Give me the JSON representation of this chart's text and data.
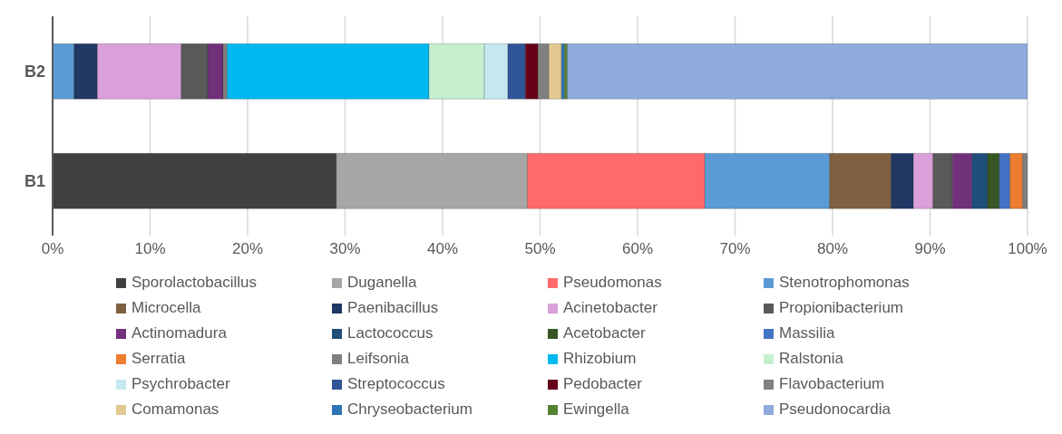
{
  "chart_data": {
    "type": "bar",
    "orientation": "horizontal",
    "stacked": true,
    "categories": [
      "B2",
      "B1"
    ],
    "xlim": [
      0,
      100
    ],
    "xticks": [
      {
        "value": 0,
        "label": "0%"
      },
      {
        "value": 10,
        "label": "10%"
      },
      {
        "value": 20,
        "label": "20%"
      },
      {
        "value": 30,
        "label": "30%"
      },
      {
        "value": 40,
        "label": "40%"
      },
      {
        "value": 50,
        "label": "50%"
      },
      {
        "value": 60,
        "label": "60%"
      },
      {
        "value": 70,
        "label": "70%"
      },
      {
        "value": 80,
        "label": "80%"
      },
      {
        "value": 90,
        "label": "90%"
      },
      {
        "value": 100,
        "label": "100%"
      }
    ],
    "grid": "x",
    "legend": "bottom",
    "series": [
      {
        "name": "Sporolactobacillus",
        "color": "#404040",
        "values": [
          0,
          29.1
        ]
      },
      {
        "name": "Duganella",
        "color": "#a6a6a6",
        "values": [
          0,
          19.6
        ]
      },
      {
        "name": "Pseudomonas",
        "color": "#ff6b6b",
        "values": [
          0,
          18.2
        ]
      },
      {
        "name": "Stenotrophomonas",
        "color": "#5b9bd5",
        "values": [
          2.2,
          12.8
        ]
      },
      {
        "name": "Microcella",
        "color": "#7f6040",
        "values": [
          0,
          6.3
        ]
      },
      {
        "name": "Paenibacillus",
        "color": "#203864",
        "values": [
          2.4,
          2.3
        ]
      },
      {
        "name": "Acinetobacter",
        "color": "#d9a0d9",
        "values": [
          8.6,
          2.0
        ]
      },
      {
        "name": "Propionibacterium",
        "color": "#595959",
        "values": [
          2.7,
          2.0
        ]
      },
      {
        "name": "Actinomadura",
        "color": "#70307a",
        "values": [
          1.6,
          2.0
        ]
      },
      {
        "name": "Lactococcus",
        "color": "#1f4e79",
        "values": [
          0,
          1.6
        ]
      },
      {
        "name": "Acetobacter",
        "color": "#375623",
        "values": [
          0,
          1.2
        ]
      },
      {
        "name": "Massilia",
        "color": "#4472c4",
        "values": [
          0,
          1.1
        ]
      },
      {
        "name": "Serratia",
        "color": "#ed7d31",
        "values": [
          0,
          1.3
        ]
      },
      {
        "name": "Leifsonia",
        "color": "#7f7f7f",
        "values": [
          0.4,
          0.5
        ]
      },
      {
        "name": "Rhizobium",
        "color": "#00b8f0",
        "values": [
          20.7,
          0
        ]
      },
      {
        "name": "Ralstonia",
        "color": "#c6efce",
        "values": [
          5.7,
          0
        ]
      },
      {
        "name": "Psychrobacter",
        "color": "#c5e8f0",
        "values": [
          2.4,
          0
        ]
      },
      {
        "name": "Streptococcus",
        "color": "#2f5597",
        "values": [
          1.8,
          0
        ]
      },
      {
        "name": "Pedobacter",
        "color": "#660018",
        "values": [
          1.3,
          0
        ]
      },
      {
        "name": "Flavobacterium",
        "color": "#808080",
        "values": [
          1.1,
          0
        ]
      },
      {
        "name": "Comamonas",
        "color": "#e0c890",
        "values": [
          1.3,
          0
        ]
      },
      {
        "name": "Chryseobacterium",
        "color": "#2e75b6",
        "values": [
          0.3,
          0
        ]
      },
      {
        "name": "Ewingella",
        "color": "#548235",
        "values": [
          0.3,
          0
        ]
      },
      {
        "name": "Pseudonocardia",
        "color": "#8faadc",
        "values": [
          47.2,
          0
        ]
      }
    ]
  }
}
